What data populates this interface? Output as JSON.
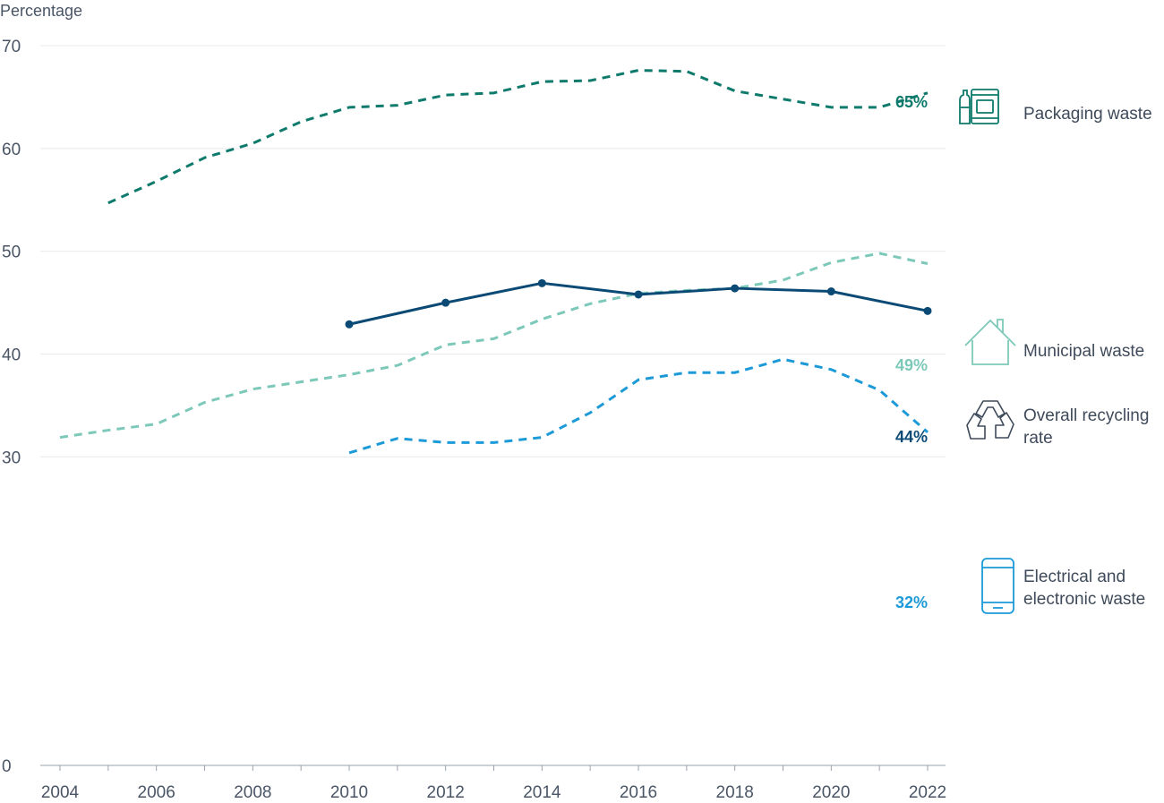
{
  "chart_data": {
    "type": "line",
    "ylabel": "Percentage",
    "xlabel": "",
    "xlim": [
      2004,
      2022
    ],
    "ylim": [
      0,
      70
    ],
    "x_ticks": [
      "2004",
      "2006",
      "2008",
      "2010",
      "2012",
      "2014",
      "2016",
      "2018",
      "2020",
      "2022"
    ],
    "y_ticks": [
      "0",
      "30",
      "40",
      "50",
      "60",
      "70"
    ],
    "y_tick_values": [
      0,
      30,
      40,
      50,
      60,
      70
    ],
    "grid": true,
    "legend_placement": "right",
    "series": [
      {
        "name": "Packaging waste",
        "color": "#0d7a6c",
        "style": "dashed",
        "icon": "packaging-icon",
        "end_label": "65%",
        "x": [
          2005,
          2006,
          2007,
          2008,
          2009,
          2010,
          2011,
          2012,
          2013,
          2014,
          2015,
          2016,
          2017,
          2018,
          2019,
          2020,
          2021,
          2022
        ],
        "values": [
          54.7,
          56.8,
          59.1,
          60.5,
          62.6,
          64.0,
          64.2,
          65.2,
          65.4,
          66.5,
          66.6,
          67.6,
          67.5,
          65.6,
          64.8,
          64.0,
          64.0,
          65.4
        ]
      },
      {
        "name": "Municipal waste",
        "color": "#7dc9b9",
        "style": "dashed",
        "icon": "house-icon",
        "end_label": "49%",
        "x": [
          2004,
          2005,
          2006,
          2007,
          2008,
          2009,
          2010,
          2011,
          2012,
          2013,
          2014,
          2015,
          2016,
          2017,
          2018,
          2019,
          2020,
          2021,
          2022
        ],
        "values": [
          31.9,
          32.6,
          33.2,
          35.3,
          36.6,
          37.3,
          38.0,
          38.9,
          40.9,
          41.5,
          43.4,
          44.9,
          45.9,
          46.2,
          46.4,
          47.2,
          48.9,
          49.8,
          48.8
        ]
      },
      {
        "name": "Overall recycling rate",
        "color": "#0b4a75",
        "style": "solid",
        "markers": true,
        "icon": "recycle-icon",
        "end_label": "44%",
        "x": [
          2010,
          2012,
          2014,
          2016,
          2018,
          2020,
          2022
        ],
        "values": [
          42.9,
          45.0,
          46.9,
          45.8,
          46.4,
          46.1,
          44.2
        ]
      },
      {
        "name": "Electrical and electronic waste",
        "color": "#1c9ad8",
        "style": "dashed",
        "icon": "phone-icon",
        "end_label": "32%",
        "x": [
          2010,
          2011,
          2012,
          2013,
          2014,
          2015,
          2016,
          2017,
          2018,
          2019,
          2020,
          2021,
          2022
        ],
        "values": [
          30.4,
          31.8,
          31.4,
          31.4,
          31.9,
          34.3,
          37.5,
          38.2,
          38.2,
          39.5,
          38.5,
          36.5,
          32.4
        ]
      }
    ]
  },
  "legend": {
    "packaging": {
      "label": "Packaging waste",
      "icon": "packaging-icon"
    },
    "municipal": {
      "label": "Municipal waste",
      "icon": "house-icon"
    },
    "overall": {
      "line1": "Overall recycling",
      "line2": "rate",
      "icon": "recycle-icon"
    },
    "electrical": {
      "line1": "Electrical and",
      "line2": "electronic waste",
      "icon": "phone-icon"
    }
  }
}
